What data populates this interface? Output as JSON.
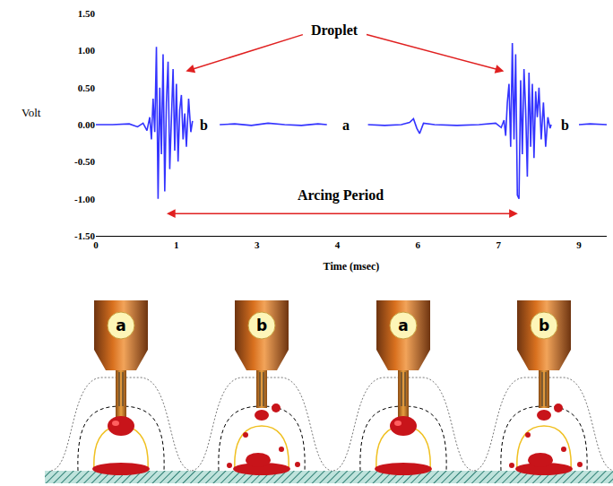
{
  "chart_data": {
    "type": "line",
    "x_label": "Time (msec)",
    "y_label": "Volt",
    "xlim": [
      0,
      9.2
    ],
    "ylim": [
      -1.5,
      1.5
    ],
    "xticks": [
      0,
      {
        "value": 1.45,
        "label": "1"
      },
      {
        "value": 2.9,
        "label": "3"
      },
      {
        "value": 4.35,
        "label": "4"
      },
      {
        "value": 5.8,
        "label": "6"
      },
      {
        "value": 7.25,
        "label": "7"
      },
      {
        "value": 8.7,
        "label": "9"
      }
    ],
    "yticks": [
      {
        "value": -1.5,
        "label": "-1.50"
      },
      {
        "value": -1.0,
        "label": "-1.00"
      },
      {
        "value": -0.5,
        "label": "-0.50"
      },
      {
        "value": 0,
        "label": "0.00"
      },
      {
        "value": 0.5,
        "label": "0.50"
      },
      {
        "value": 1.0,
        "label": "1.00"
      },
      {
        "value": 1.5,
        "label": "1.50"
      }
    ],
    "grid": false,
    "color": "#3333ff",
    "x": [
      0,
      0.3,
      0.6,
      0.75,
      0.85,
      0.92,
      0.97,
      1.0,
      1.03,
      1.06,
      1.09,
      1.12,
      1.15,
      1.18,
      1.21,
      1.24,
      1.27,
      1.3,
      1.33,
      1.36,
      1.39,
      1.42,
      1.45,
      1.48,
      1.51,
      1.54,
      1.57,
      1.6,
      1.63,
      1.67,
      1.71,
      1.74,
      1.95,
      2.23,
      2.5,
      2.8,
      3.1,
      3.4,
      3.7,
      4.0,
      4.16,
      4.5,
      4.9,
      5.2,
      5.5,
      5.65,
      5.72,
      5.78,
      5.83,
      5.9,
      6.1,
      6.5,
      6.9,
      7.2,
      7.3,
      7.35,
      7.38,
      7.41,
      7.44,
      7.47,
      7.5,
      7.53,
      7.56,
      7.59,
      7.62,
      7.65,
      7.68,
      7.71,
      7.74,
      7.77,
      7.8,
      7.83,
      7.86,
      7.89,
      7.92,
      7.95,
      7.98,
      8.02,
      8.06,
      8.1,
      8.14,
      8.18,
      8.2,
      8.45,
      8.7,
      8.9,
      9.2
    ],
    "values": [
      0,
      0.0,
      0.01,
      -0.03,
      0.02,
      -0.08,
      0.1,
      -0.2,
      0.35,
      -0.1,
      1.05,
      -1.0,
      0.5,
      -0.4,
      0.95,
      -0.9,
      0.3,
      0.85,
      -0.6,
      0.1,
      0.75,
      -0.35,
      0.55,
      -0.5,
      0.2,
      0.4,
      -0.2,
      0.15,
      -0.3,
      0.35,
      -0.1,
      0.05,
      null,
      0.0,
      0.01,
      -0.01,
      0.02,
      0.0,
      -0.01,
      0.01,
      0.0,
      null,
      0.0,
      -0.01,
      0.0,
      0.03,
      0.08,
      -0.05,
      -0.12,
      0.02,
      0.0,
      -0.01,
      0.0,
      0.02,
      -0.04,
      0.06,
      -0.15,
      0.3,
      0.55,
      -0.3,
      1.1,
      -0.2,
      0.95,
      -0.95,
      -1.0,
      0.6,
      -0.4,
      0.75,
      0.2,
      -0.7,
      0.7,
      -0.3,
      0.55,
      -0.45,
      0.45,
      0.1,
      0.5,
      -0.2,
      0.3,
      -0.3,
      0.1,
      -0.05,
      0.0,
      null,
      0.0,
      0.01,
      0.0
    ],
    "annotations": [
      {
        "text": "Droplet",
        "x": 4.3,
        "y": 1.27,
        "arrows_to": [
          [
            1.62,
            0.72
          ],
          [
            7.35,
            0.72
          ]
        ]
      },
      {
        "text": "Arcing Period",
        "x": 4.4,
        "y": -0.95,
        "span": [
          1.25,
          7.6
        ],
        "span_y": -1.2
      },
      {
        "text": "b",
        "x": 1.95,
        "y": 0
      },
      {
        "text": "a",
        "x": 4.5,
        "y": 0
      },
      {
        "text": "b",
        "x": 8.45,
        "y": 0
      }
    ]
  },
  "diagram": {
    "torches": [
      "a",
      "b",
      "a",
      "b"
    ]
  }
}
